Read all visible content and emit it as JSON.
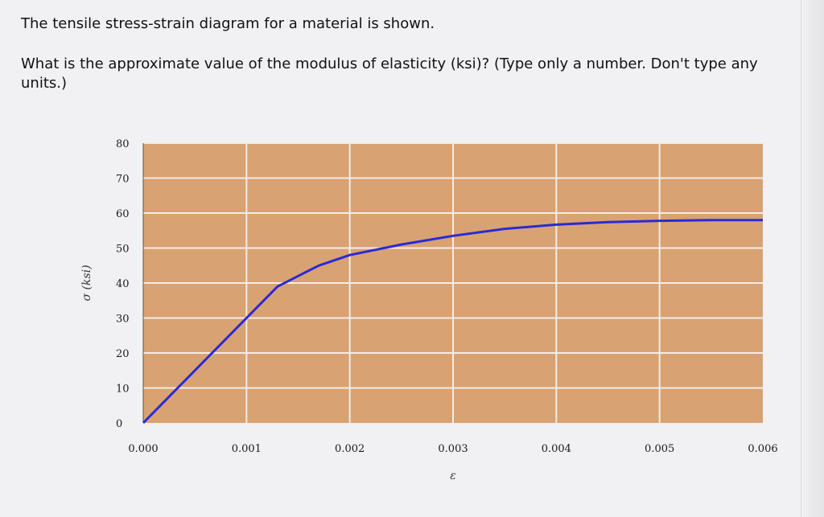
{
  "question": {
    "line1": "The tensile stress-strain diagram for a material is shown.",
    "line2": "What is the approximate value of the modulus of elasticity (ksi)? (Type only a number. Don't type any units.)"
  },
  "colors": {
    "plot_background": "#d9a272",
    "grid": "#f3ece6",
    "curve": "#2a2ad6"
  },
  "chart_data": {
    "type": "line",
    "xlabel": "ε",
    "ylabel": "σ (ksi)",
    "xlim": [
      0,
      0.006
    ],
    "ylim": [
      0,
      80
    ],
    "x_ticks": [
      "0.000",
      "0.001",
      "0.002",
      "0.003",
      "0.004",
      "0.005",
      "0.006"
    ],
    "y_ticks": [
      "0",
      "10",
      "20",
      "30",
      "40",
      "50",
      "60",
      "70",
      "80"
    ],
    "grid": true,
    "series": [
      {
        "x": [
          0,
          0.0013,
          0.0015,
          0.0017,
          0.002,
          0.0025,
          0.003,
          0.0035,
          0.004,
          0.0045,
          0.005,
          0.0055,
          0.006
        ],
        "y": [
          0,
          39,
          42,
          45,
          48,
          51,
          53.5,
          55.5,
          56.7,
          57.4,
          57.8,
          58,
          58
        ]
      }
    ]
  }
}
